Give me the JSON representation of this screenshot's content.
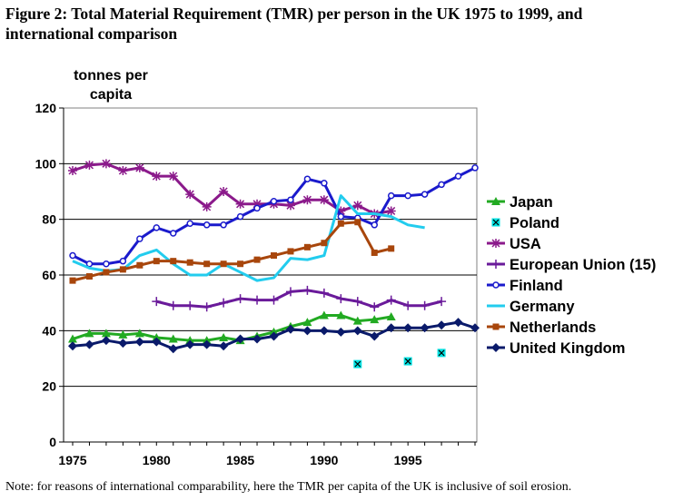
{
  "figure": {
    "title": "Figure 2: Total Material Requirement (TMR) per person in the UK 1975 to 1999, and international comparison",
    "note": "Note: for reasons of international comparability, here the TMR per capita of the UK is inclusive of soil erosion."
  },
  "chart_data": {
    "type": "line",
    "title": "Figure 2: Total Material Requirement (TMR) per person in the UK 1975 to 1999, and international comparison",
    "xlabel": "",
    "ylabel": "tonnes per capita",
    "xlim": [
      1975,
      1999
    ],
    "ylim": [
      0,
      120
    ],
    "x_ticks": [
      1975,
      1980,
      1985,
      1990,
      1995
    ],
    "y_ticks": [
      0,
      20,
      40,
      60,
      80,
      100,
      120
    ],
    "grid": "horizontal",
    "legend_position": "right",
    "series": [
      {
        "name": "Japan",
        "color": "#22aa22",
        "marker": "triangle",
        "line": true,
        "x": [
          1975,
          1976,
          1977,
          1978,
          1979,
          1980,
          1981,
          1982,
          1983,
          1984,
          1985,
          1986,
          1987,
          1988,
          1989,
          1990,
          1991,
          1992,
          1993,
          1994
        ],
        "y": [
          37,
          39,
          39,
          38.5,
          39,
          37.5,
          37,
          36.5,
          36.5,
          37.5,
          36.5,
          38,
          39.5,
          41.5,
          43,
          45.5,
          45.5,
          43.5,
          44,
          45
        ]
      },
      {
        "name": "Poland",
        "color": "#00e0e0",
        "marker": "xsquare",
        "line": false,
        "x": [
          1992,
          1995,
          1997
        ],
        "y": [
          28,
          29,
          32
        ]
      },
      {
        "name": "USA",
        "color": "#8b1a8b",
        "marker": "star",
        "line": true,
        "x": [
          1975,
          1976,
          1977,
          1978,
          1979,
          1980,
          1981,
          1982,
          1983,
          1984,
          1985,
          1986,
          1987,
          1988,
          1989,
          1990,
          1991,
          1992,
          1993,
          1994
        ],
        "y": [
          97.5,
          99.5,
          100,
          97.5,
          98.5,
          95.5,
          95.5,
          89,
          84.5,
          90,
          85.5,
          85.5,
          85.5,
          85,
          87,
          87,
          83,
          85,
          82,
          83
        ]
      },
      {
        "name": "European Union (15)",
        "color": "#6a1a9a",
        "marker": "plus",
        "line": true,
        "x": [
          1980,
          1981,
          1982,
          1983,
          1984,
          1985,
          1986,
          1987,
          1988,
          1989,
          1990,
          1991,
          1992,
          1993,
          1994,
          1995,
          1996,
          1997
        ],
        "y": [
          50.5,
          49,
          49,
          48.5,
          50,
          51.5,
          51,
          51,
          54,
          54.5,
          53.5,
          51.5,
          50.5,
          48.5,
          51,
          49,
          49,
          50.5
        ]
      },
      {
        "name": "Finland",
        "color": "#1a1acc",
        "marker": "circle",
        "line": true,
        "x": [
          1975,
          1976,
          1977,
          1978,
          1979,
          1980,
          1981,
          1982,
          1983,
          1984,
          1985,
          1986,
          1987,
          1988,
          1989,
          1990,
          1991,
          1992,
          1993,
          1994,
          1995,
          1996,
          1997,
          1998,
          1999
        ],
        "y": [
          67,
          64,
          64,
          65,
          73,
          77,
          75,
          78.5,
          78,
          78,
          81,
          84,
          86.5,
          87,
          94.5,
          93,
          81,
          80.5,
          78,
          88.5,
          88.5,
          89,
          92.5,
          95.5,
          98.5
        ]
      },
      {
        "name": "Germany",
        "color": "#22ccee",
        "marker": "none",
        "line": true,
        "x": [
          1975,
          1976,
          1977,
          1978,
          1979,
          1980,
          1981,
          1982,
          1983,
          1984,
          1985,
          1986,
          1987,
          1988,
          1989,
          1990,
          1991,
          1992,
          1993,
          1994,
          1995,
          1996
        ],
        "y": [
          65,
          62.5,
          61.5,
          62,
          67,
          69,
          64,
          60,
          60,
          64,
          61,
          58,
          59,
          66,
          65.5,
          67,
          88.5,
          82,
          82,
          81,
          78,
          77
        ]
      },
      {
        "name": "Netherlands",
        "color": "#a8460c",
        "marker": "square",
        "line": true,
        "x": [
          1975,
          1976,
          1977,
          1978,
          1979,
          1980,
          1981,
          1982,
          1983,
          1984,
          1985,
          1986,
          1987,
          1988,
          1989,
          1990,
          1991,
          1992,
          1993,
          1994
        ],
        "y": [
          58,
          59.5,
          61,
          62,
          63.5,
          65,
          65,
          64.5,
          64,
          64,
          64,
          65.5,
          67,
          68.5,
          70,
          71.5,
          78.5,
          79,
          68,
          69.5
        ]
      },
      {
        "name": "United Kingdom",
        "color": "#0a1a6a",
        "marker": "diamond",
        "line": true,
        "x": [
          1975,
          1976,
          1977,
          1978,
          1979,
          1980,
          1981,
          1982,
          1983,
          1984,
          1985,
          1986,
          1987,
          1988,
          1989,
          1990,
          1991,
          1992,
          1993,
          1994,
          1995,
          1996,
          1997,
          1998,
          1999
        ],
        "y": [
          34.5,
          35,
          36.5,
          35.5,
          36,
          36,
          33.5,
          35,
          35,
          34.5,
          37,
          37,
          38,
          40.5,
          40,
          40,
          39.5,
          40,
          38,
          41,
          41,
          41,
          42,
          43,
          41
        ]
      }
    ]
  }
}
